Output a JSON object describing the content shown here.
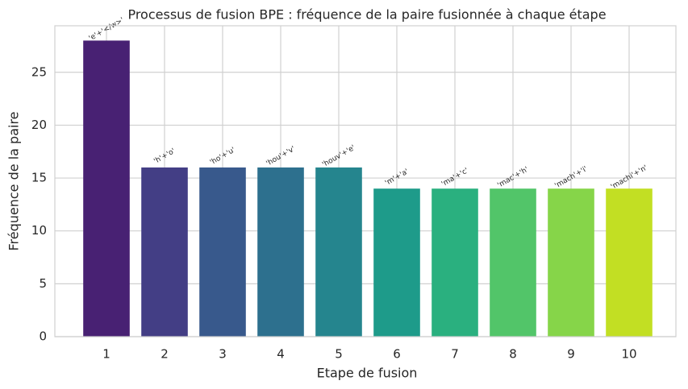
{
  "chart_data": {
    "type": "bar",
    "title": "Processus de fusion BPE : fréquence de la paire fusionnée à chaque étape",
    "x_label": "Etape de fusion",
    "y_label": "Fréquence de la paire",
    "categories": [
      "1",
      "2",
      "3",
      "4",
      "5",
      "6",
      "7",
      "8",
      "9",
      "10"
    ],
    "values": [
      28,
      16,
      16,
      16,
      16,
      14,
      14,
      14,
      14,
      14
    ],
    "annotations": [
      "'e'+'</w>'",
      "'h'+'o'",
      "'ho'+'u'",
      "'hou'+'v'",
      "'houv'+'e'",
      "'m'+'a'",
      "'ma'+'c'",
      "'mac'+'h'",
      "'mach'+'i'",
      "'machi'+'n'"
    ],
    "colors": [
      "#482173",
      "#433e85",
      "#38598c",
      "#2d708e",
      "#25858e",
      "#1e9b8a",
      "#2ab07f",
      "#52c569",
      "#86d549",
      "#c2df23"
    ],
    "ylim": [
      0,
      29.4
    ],
    "yticks": [
      0,
      5,
      10,
      15,
      20,
      25
    ],
    "grid": true
  }
}
